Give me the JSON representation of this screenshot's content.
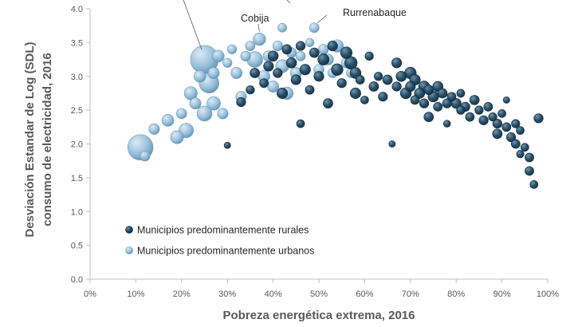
{
  "chart_data": {
    "type": "scatter",
    "subtype": "bubble",
    "xlabel": "Pobreza energética extrema, 2016",
    "ylabel_line1": "Desviación Estandar de Log (SDL)",
    "ylabel_line2": "consumo de electricidad, 2016",
    "xlim": [
      0,
      1
    ],
    "ylim": [
      0,
      4.0
    ],
    "x_ticks": [
      "0%",
      "10%",
      "20%",
      "30%",
      "40%",
      "50%",
      "60%",
      "70%",
      "80%",
      "90%",
      "100%"
    ],
    "y_ticks": [
      "0.0",
      "0.5",
      "1.0",
      "1.5",
      "2.0",
      "2.5",
      "3.0",
      "3.5",
      "4.0"
    ],
    "legend_position": "bottom-left",
    "grid": false,
    "colors": {
      "rural": "#13384f",
      "urban": "#8fb9d6"
    },
    "series": [
      {
        "name": "Municipios predominantemente rurales",
        "key": "rural",
        "points": [
          [
            0.3,
            1.98,
            0.6
          ],
          [
            0.33,
            2.62,
            1.2
          ],
          [
            0.35,
            2.8,
            1.0
          ],
          [
            0.36,
            3.05,
            1.3
          ],
          [
            0.38,
            2.9,
            1.1
          ],
          [
            0.39,
            3.15,
            1.4
          ],
          [
            0.4,
            3.3,
            1.5
          ],
          [
            0.41,
            3.05,
            1.2
          ],
          [
            0.42,
            2.75,
            1.6
          ],
          [
            0.43,
            3.4,
            1.3
          ],
          [
            0.44,
            3.2,
            1.5
          ],
          [
            0.45,
            2.95,
            1.4
          ],
          [
            0.46,
            2.3,
            0.9
          ],
          [
            0.46,
            3.45,
            1.2
          ],
          [
            0.47,
            3.1,
            1.6
          ],
          [
            0.48,
            2.8,
            1.1
          ],
          [
            0.49,
            3.35,
            1.3
          ],
          [
            0.5,
            3.0,
            1.4
          ],
          [
            0.51,
            3.25,
            1.8
          ],
          [
            0.52,
            2.6,
            1.3
          ],
          [
            0.53,
            3.45,
            1.4
          ],
          [
            0.54,
            3.1,
            1.9
          ],
          [
            0.55,
            2.9,
            1.2
          ],
          [
            0.56,
            3.35,
            1.9
          ],
          [
            0.57,
            3.2,
            2.2
          ],
          [
            0.58,
            2.75,
            1.6
          ],
          [
            0.58,
            3.05,
            1.7
          ],
          [
            0.59,
            2.95,
            1.1
          ],
          [
            0.6,
            2.65,
            0.9
          ],
          [
            0.61,
            3.3,
            1.0
          ],
          [
            0.62,
            2.85,
            1.3
          ],
          [
            0.63,
            3.0,
            1.0
          ],
          [
            0.64,
            2.7,
            1.2
          ],
          [
            0.65,
            2.95,
            1.3
          ],
          [
            0.66,
            2.0,
            0.6
          ],
          [
            0.67,
            3.2,
            1.4
          ],
          [
            0.67,
            2.85,
            1.2
          ],
          [
            0.68,
            3.0,
            1.5
          ],
          [
            0.69,
            2.75,
            1.7
          ],
          [
            0.7,
            3.05,
            1.9
          ],
          [
            0.7,
            2.85,
            1.4
          ],
          [
            0.71,
            2.95,
            1.6
          ],
          [
            0.71,
            2.65,
            1.1
          ],
          [
            0.72,
            2.75,
            1.5
          ],
          [
            0.73,
            2.6,
            1.2
          ],
          [
            0.73,
            2.85,
            1.7
          ],
          [
            0.74,
            2.8,
            1.3
          ],
          [
            0.74,
            2.4,
            1.3
          ],
          [
            0.75,
            2.7,
            1.6
          ],
          [
            0.76,
            2.55,
            1.1
          ],
          [
            0.76,
            2.85,
            1.5
          ],
          [
            0.77,
            2.75,
            1.3
          ],
          [
            0.78,
            2.6,
            1.2
          ],
          [
            0.78,
            2.3,
            0.7
          ],
          [
            0.79,
            2.7,
            1.1
          ],
          [
            0.8,
            2.6,
            1.4
          ],
          [
            0.81,
            2.5,
            1.0
          ],
          [
            0.81,
            2.75,
            0.9
          ],
          [
            0.82,
            2.55,
            1.2
          ],
          [
            0.83,
            2.4,
            1.1
          ],
          [
            0.84,
            2.65,
            1.3
          ],
          [
            0.85,
            2.5,
            1.0
          ],
          [
            0.86,
            2.35,
            1.2
          ],
          [
            0.87,
            2.55,
            1.1
          ],
          [
            0.88,
            2.4,
            1.0
          ],
          [
            0.89,
            2.3,
            1.2
          ],
          [
            0.89,
            2.15,
            1.3
          ],
          [
            0.9,
            2.45,
            0.9
          ],
          [
            0.91,
            2.25,
            1.1
          ],
          [
            0.91,
            2.65,
            0.6
          ],
          [
            0.92,
            2.1,
            1.2
          ],
          [
            0.93,
            2.3,
            1.0
          ],
          [
            0.93,
            2.0,
            1.1
          ],
          [
            0.94,
            2.2,
            0.9
          ],
          [
            0.94,
            1.85,
            0.8
          ],
          [
            0.95,
            1.95,
            0.9
          ],
          [
            0.96,
            1.8,
            1.1
          ],
          [
            0.96,
            1.6,
            1.1
          ],
          [
            0.97,
            1.4,
            0.9
          ],
          [
            0.98,
            2.38,
            1.2
          ]
        ]
      },
      {
        "name": "Municipios predominantemente urbanos",
        "key": "urban",
        "points": [
          [
            0.11,
            1.95,
            9.0
          ],
          [
            0.12,
            1.82,
            1.4
          ],
          [
            0.14,
            2.22,
            1.6
          ],
          [
            0.17,
            2.35,
            2.0
          ],
          [
            0.19,
            2.1,
            2.4
          ],
          [
            0.2,
            2.45,
            1.5
          ],
          [
            0.21,
            2.2,
            3.0
          ],
          [
            0.22,
            2.75,
            2.4
          ],
          [
            0.23,
            2.6,
            1.8
          ],
          [
            0.24,
            3.0,
            2.0
          ],
          [
            0.25,
            3.25,
            11.0
          ],
          [
            0.25,
            2.45,
            3.2
          ],
          [
            0.26,
            2.9,
            5.5
          ],
          [
            0.27,
            2.6,
            2.6
          ],
          [
            0.27,
            3.05,
            1.8
          ],
          [
            0.28,
            3.3,
            2.0
          ],
          [
            0.29,
            2.45,
            1.6
          ],
          [
            0.3,
            3.2,
            1.2
          ],
          [
            0.31,
            3.4,
            1.2
          ],
          [
            0.32,
            3.05,
            1.8
          ],
          [
            0.33,
            2.7,
            1.6
          ],
          [
            0.34,
            3.3,
            1.4
          ],
          [
            0.35,
            3.45,
            1.3
          ],
          [
            0.36,
            3.25,
            3.5
          ],
          [
            0.37,
            3.55,
            2.2
          ],
          [
            0.38,
            3.0,
            2.0
          ],
          [
            0.39,
            3.3,
            1.6
          ],
          [
            0.4,
            2.85,
            1.8
          ],
          [
            0.41,
            3.45,
            1.4
          ],
          [
            0.42,
            3.72,
            1.1
          ],
          [
            0.42,
            3.15,
            2.4
          ],
          [
            0.43,
            2.75,
            2.2
          ],
          [
            0.44,
            3.35,
            1.4
          ],
          [
            0.45,
            3.05,
            1.8
          ],
          [
            0.46,
            3.3,
            1.3
          ],
          [
            0.48,
            3.5,
            1.0
          ],
          [
            0.49,
            3.72,
            1.3
          ],
          [
            0.5,
            3.1,
            1.5
          ],
          [
            0.51,
            3.4,
            1.4
          ],
          [
            0.52,
            3.25,
            1.7
          ],
          [
            0.53,
            3.05,
            1.3
          ],
          [
            0.54,
            3.45,
            2.2
          ],
          [
            0.56,
            3.2,
            1.4
          ],
          [
            0.57,
            3.05,
            1.2
          ]
        ]
      }
    ],
    "annotations": [
      {
        "label": "Cobija",
        "x": 0.37,
        "y": 3.57
      },
      {
        "label": "Rurrenabaque",
        "x": 0.49,
        "y": 3.72
      }
    ]
  }
}
